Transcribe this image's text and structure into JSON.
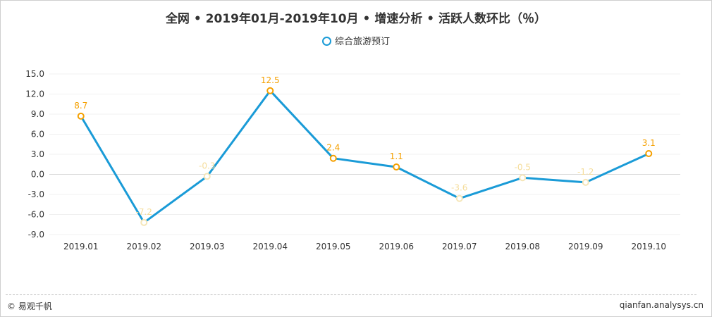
{
  "title": "全网 • 2019年01月-2019年10月 • 增速分析 • 活跃人数环比（％）",
  "footer": {
    "left": "© 易观千帆",
    "right": "qianfan.analysys.cn"
  },
  "colors": {
    "line": "#1a9bd7",
    "positive_label": "#f5a000",
    "negative_label": "#f5dd9c",
    "positive_marker": "#f5a000",
    "negative_marker": "#f5e6b8"
  },
  "chart_data": {
    "type": "line",
    "categories": [
      "2019.01",
      "2019.02",
      "2019.03",
      "2019.04",
      "2019.05",
      "2019.06",
      "2019.07",
      "2019.08",
      "2019.09",
      "2019.10"
    ],
    "series": [
      {
        "name": "综合旅游预订",
        "values": [
          8.7,
          -7.2,
          -0.3,
          12.5,
          2.4,
          1.1,
          -3.6,
          -0.5,
          -1.2,
          3.1
        ]
      }
    ],
    "data_labels": [
      "8.7",
      "-7.2",
      "-0.3",
      "12.5",
      "2.4",
      "1.1",
      "-3.6",
      "-0.5",
      "-1.2",
      "3.1"
    ],
    "yticks": [
      "15.0",
      "12.0",
      "9.0",
      "6.0",
      "3.0",
      "0.0",
      "-3.0",
      "-6.0",
      "-9.0"
    ],
    "ytick_values": [
      15,
      12,
      9,
      6,
      3,
      0,
      -3,
      -6,
      -9
    ],
    "ylim": [
      -9,
      15
    ],
    "legend_position": "top-center",
    "grid": true
  }
}
